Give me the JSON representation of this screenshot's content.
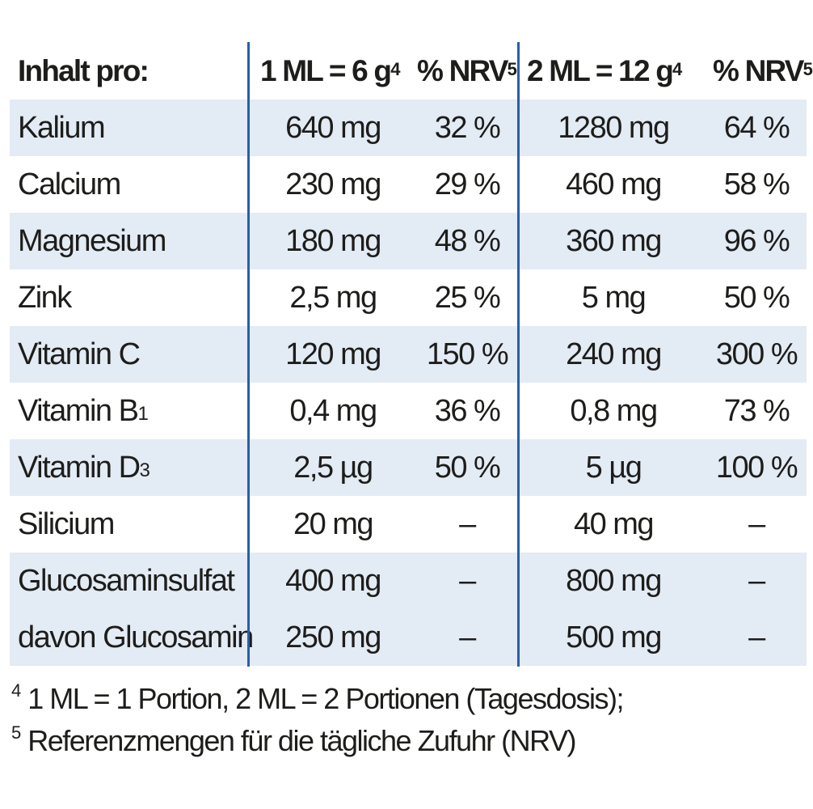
{
  "header": {
    "label": "Inhalt pro:",
    "col1": "1 ML = 6 g",
    "col1_sup": "4",
    "col2": "% NRV",
    "col2_sup": "5",
    "col3": "2 ML = 12 g",
    "col3_sup": "4",
    "col4": "% NRV",
    "col4_sup": "5"
  },
  "rows": [
    {
      "name": "Kalium",
      "sub": "",
      "v1": "640 mg",
      "p1": "32 %",
      "v2": "1280 mg",
      "p2": "64 %"
    },
    {
      "name": "Calcium",
      "sub": "",
      "v1": "230 mg",
      "p1": "29 %",
      "v2": "460 mg",
      "p2": "58 %"
    },
    {
      "name": "Magnesium",
      "sub": "",
      "v1": "180 mg",
      "p1": "48 %",
      "v2": "360 mg",
      "p2": "96 %"
    },
    {
      "name": "Zink",
      "sub": "",
      "v1": "2,5 mg",
      "p1": "25 %",
      "v2": "5 mg",
      "p2": "50 %"
    },
    {
      "name": "Vitamin C",
      "sub": "",
      "v1": "120 mg",
      "p1": "150 %",
      "v2": "240 mg",
      "p2": "300 %"
    },
    {
      "name": "Vitamin B",
      "sub": "1",
      "v1": "0,4 mg",
      "p1": "36 %",
      "v2": "0,8 mg",
      "p2": "73 %"
    },
    {
      "name": "Vitamin D",
      "sub": "3",
      "v1": "2,5 µg",
      "p1": "50 %",
      "v2": "5 µg",
      "p2": "100 %"
    },
    {
      "name": "Silicium",
      "sub": "",
      "v1": "20 mg",
      "p1": "–",
      "v2": "40 mg",
      "p2": "–"
    },
    {
      "name": "Glucosaminsulfat",
      "sub": "",
      "v1": "400 mg",
      "p1": "–",
      "v2": "800 mg",
      "p2": "–"
    },
    {
      "name": "davon Glucosamin",
      "sub": "",
      "v1": "250 mg",
      "p1": "–",
      "v2": "500 mg",
      "p2": "–"
    }
  ],
  "footnotes": [
    {
      "mark": "4",
      "text": "1 ML = 1 Portion, 2 ML = 2 Portionen (Tagesdosis);"
    },
    {
      "mark": "5",
      "text": "Referenzmengen für die tägliche Zufuhr (NRV)"
    }
  ],
  "colors": {
    "row_shade": "#e3ebf5",
    "divider": "#2a5ea8"
  }
}
